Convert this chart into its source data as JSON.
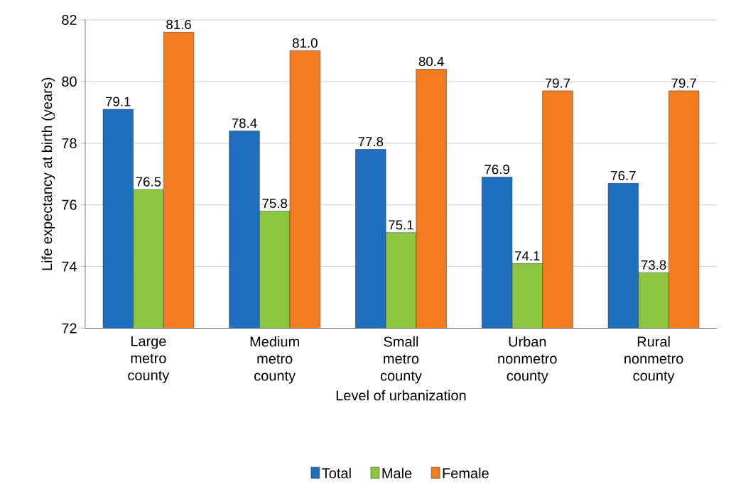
{
  "chart_data": {
    "type": "bar",
    "xlabel": "Level of urbanization",
    "ylabel": "Life expectancy at birth (years)",
    "categories": [
      "Large metro county",
      "Medium metro county",
      "Small metro county",
      "Urban nonmetro county",
      "Rural nonmetro county"
    ],
    "series": [
      {
        "name": "Total",
        "color": "#1f6fc0",
        "values": [
          79.1,
          78.4,
          77.8,
          76.9,
          76.7
        ],
        "value_labels": [
          "79.1",
          "78.4",
          "77.8",
          "76.9",
          "76.7"
        ]
      },
      {
        "name": "Male",
        "color": "#8cc63f",
        "values": [
          76.5,
          75.8,
          75.1,
          74.1,
          73.8
        ],
        "value_labels": [
          "76.5",
          "75.8",
          "75.1",
          "74.1",
          "73.8"
        ]
      },
      {
        "name": "Female",
        "color": "#f47c20",
        "values": [
          81.6,
          81.0,
          80.4,
          79.7,
          79.7
        ],
        "value_labels": [
          "81.6",
          "81.0",
          "80.4",
          "79.7",
          "79.7"
        ]
      }
    ],
    "ylim": [
      72,
      82
    ],
    "yticks": [
      72,
      74,
      76,
      78,
      80,
      82
    ],
    "grid": "y",
    "legend": "bottom"
  }
}
